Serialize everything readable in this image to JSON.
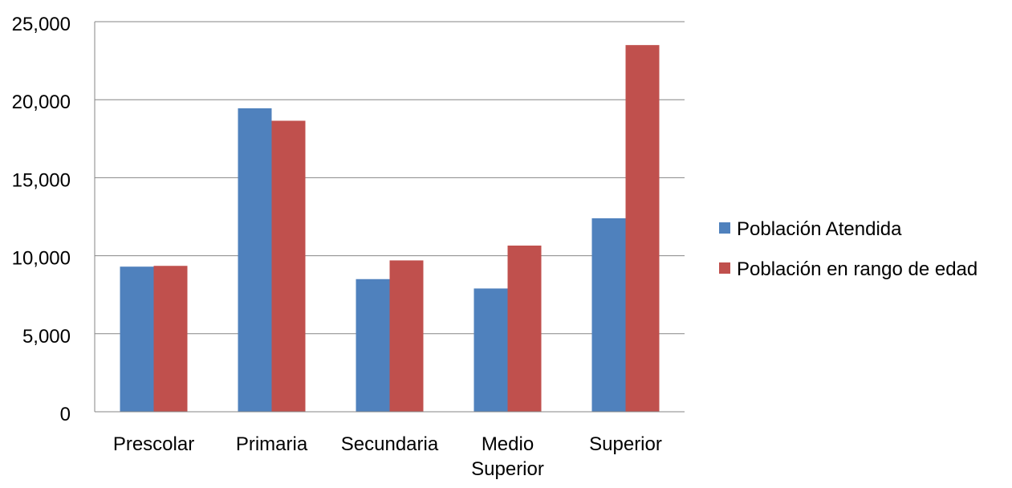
{
  "chart_data": {
    "type": "bar",
    "title": "",
    "xlabel": "",
    "ylabel": "",
    "categories": [
      "Prescolar",
      "Primaria",
      "Secundaria",
      "Medio Superior",
      "Superior"
    ],
    "category_lines": [
      [
        "Prescolar"
      ],
      [
        "Primaria"
      ],
      [
        "Secundaria"
      ],
      [
        "Medio",
        "Superior"
      ],
      [
        "Superior"
      ]
    ],
    "series": [
      {
        "name": "Población Atendida",
        "color": "#4F81BD",
        "values": [
          9300,
          19450,
          8500,
          7900,
          12400
        ]
      },
      {
        "name": "Población en rango de edad",
        "color": "#C0504D",
        "values": [
          9350,
          18650,
          9700,
          10650,
          23500
        ]
      }
    ],
    "ylim": [
      0,
      25000
    ],
    "yticks": [
      0,
      5000,
      10000,
      15000,
      20000,
      25000
    ],
    "ytick_labels": [
      "0",
      "5,000",
      "10,000",
      "15,000",
      "20,000",
      "25,000"
    ],
    "grid": true,
    "legend_position": "right"
  }
}
